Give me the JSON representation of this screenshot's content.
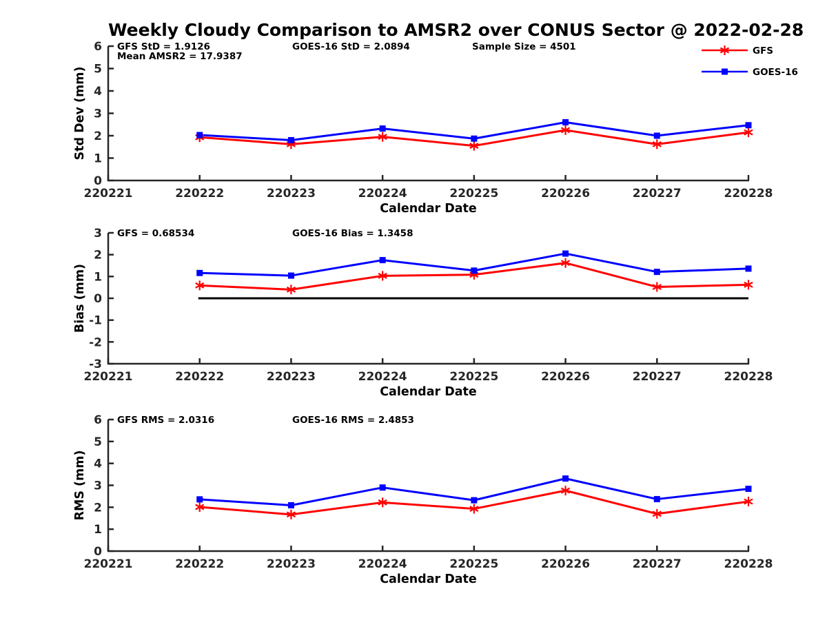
{
  "title": "Weekly Cloudy Comparison to AMSR2 over CONUS Sector @ 2022-02-28",
  "colors": {
    "gfs": "#ff0000",
    "goes16": "#0000ff",
    "axis": "#262626",
    "text": "#000000",
    "zero_line": "#000000",
    "background": "#ffffff"
  },
  "legend": {
    "position": "top-right",
    "items": [
      {
        "label": "GFS",
        "color": "#ff0000",
        "marker": "asterisk"
      },
      {
        "label": "GOES-16",
        "color": "#0000ff",
        "marker": "square"
      }
    ]
  },
  "x_tick_labels": [
    "220221",
    "220222",
    "220223",
    "220224",
    "220225",
    "220226",
    "220227",
    "220228"
  ],
  "chart_data": [
    {
      "type": "line",
      "name": "std-dev",
      "ylabel": "Std Dev (mm)",
      "xlabel": "Calendar Date",
      "ylim": [
        0,
        6
      ],
      "yticks": [
        0,
        1,
        2,
        3,
        4,
        5,
        6
      ],
      "grid": false,
      "zero_line": false,
      "x": [
        "220222",
        "220223",
        "220224",
        "220225",
        "220226",
        "220227",
        "220228"
      ],
      "annotations": [
        {
          "text": "GFS StD = 1.9126",
          "col": 0,
          "row": 0
        },
        {
          "text": "Mean AMSR2 = 17.9387",
          "col": 0,
          "row": 1
        },
        {
          "text": "GOES-16 StD = 2.0894",
          "col": 1,
          "row": 0
        },
        {
          "text": "Sample Size = 4501",
          "col": 2,
          "row": 0
        }
      ],
      "series": [
        {
          "name": "GFS",
          "color": "#ff0000",
          "marker": "asterisk",
          "values": [
            1.93,
            1.62,
            1.95,
            1.55,
            2.25,
            1.62,
            2.15
          ]
        },
        {
          "name": "GOES-16",
          "color": "#0000ff",
          "marker": "square",
          "values": [
            2.03,
            1.8,
            2.32,
            1.87,
            2.6,
            2.0,
            2.47
          ]
        }
      ]
    },
    {
      "type": "line",
      "name": "bias",
      "ylabel": "Bias (mm)",
      "xlabel": "Calendar Date",
      "ylim": [
        -3,
        3
      ],
      "yticks": [
        -3,
        -2,
        -1,
        0,
        1,
        2,
        3
      ],
      "grid": false,
      "zero_line": true,
      "x": [
        "220222",
        "220223",
        "220224",
        "220225",
        "220226",
        "220227",
        "220228"
      ],
      "annotations": [
        {
          "text": "GFS = 0.68534",
          "col": 0,
          "row": 0
        },
        {
          "text": "GOES-16 Bias  = 1.3458",
          "col": 1,
          "row": 0
        }
      ],
      "series": [
        {
          "name": "GFS",
          "color": "#ff0000",
          "marker": "asterisk",
          "values": [
            0.59,
            0.4,
            1.03,
            1.08,
            1.62,
            0.52,
            0.62
          ]
        },
        {
          "name": "GOES-16",
          "color": "#0000ff",
          "marker": "square",
          "values": [
            1.16,
            1.04,
            1.75,
            1.27,
            2.05,
            1.21,
            1.36
          ]
        }
      ]
    },
    {
      "type": "line",
      "name": "rms",
      "ylabel": "RMS (mm)",
      "xlabel": "Calendar Date",
      "ylim": [
        0,
        6
      ],
      "yticks": [
        0,
        1,
        2,
        3,
        4,
        5,
        6
      ],
      "grid": false,
      "zero_line": false,
      "x": [
        "220222",
        "220223",
        "220224",
        "220225",
        "220226",
        "220227",
        "220228"
      ],
      "annotations": [
        {
          "text": "GFS RMS = 2.0316",
          "col": 0,
          "row": 0
        },
        {
          "text": "GOES-16 RMS = 2.4853",
          "col": 1,
          "row": 0
        }
      ],
      "series": [
        {
          "name": "GFS",
          "color": "#ff0000",
          "marker": "asterisk",
          "values": [
            2.01,
            1.67,
            2.22,
            1.93,
            2.76,
            1.7,
            2.26
          ]
        },
        {
          "name": "GOES-16",
          "color": "#0000ff",
          "marker": "square",
          "values": [
            2.36,
            2.09,
            2.9,
            2.32,
            3.31,
            2.37,
            2.84
          ]
        }
      ]
    }
  ]
}
